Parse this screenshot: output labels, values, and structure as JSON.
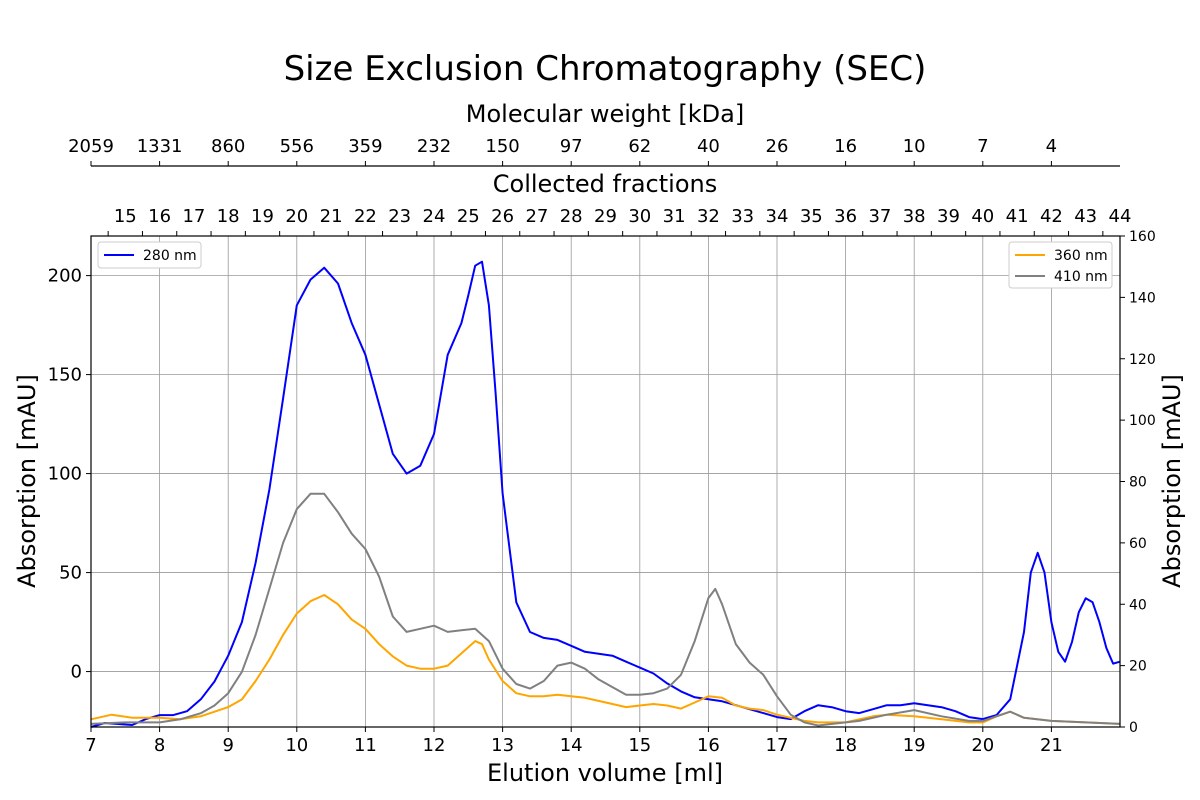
{
  "chart_data": {
    "type": "line",
    "title": "Size Exclusion Chromatography (SEC)",
    "xlabel": "Elution volume [ml]",
    "ylabel_left": "Absorption [mAU]",
    "ylabel_right": "Absorption [mAU]",
    "top_axis_1_label": "Molecular weight [kDa]",
    "top_axis_2_label": "Collected fractions",
    "xlim": [
      7,
      22
    ],
    "ylim_left": [
      -28,
      220
    ],
    "ylim_right": [
      0,
      160
    ],
    "x_ticks": [
      7,
      8,
      9,
      10,
      11,
      12,
      13,
      14,
      15,
      16,
      17,
      18,
      19,
      20,
      21
    ],
    "y_ticks_left": [
      0,
      50,
      100,
      150,
      200
    ],
    "y_ticks_right": [
      0,
      20,
      40,
      60,
      80,
      100,
      120,
      140,
      160
    ],
    "mw_ticks": [
      {
        "x": 7,
        "label": "2059"
      },
      {
        "x": 8,
        "label": "1331"
      },
      {
        "x": 9,
        "label": "860"
      },
      {
        "x": 10,
        "label": "556"
      },
      {
        "x": 11,
        "label": "359"
      },
      {
        "x": 12,
        "label": "232"
      },
      {
        "x": 13,
        "label": "150"
      },
      {
        "x": 14,
        "label": "97"
      },
      {
        "x": 15,
        "label": "62"
      },
      {
        "x": 16,
        "label": "40"
      },
      {
        "x": 17,
        "label": "26"
      },
      {
        "x": 18,
        "label": "16"
      },
      {
        "x": 19,
        "label": "10"
      },
      {
        "x": 20,
        "label": "7"
      },
      {
        "x": 21,
        "label": "4"
      }
    ],
    "fractions": {
      "start_boundary": 7.25,
      "width": 0.5,
      "labels": [
        "15",
        "16",
        "17",
        "18",
        "19",
        "20",
        "21",
        "22",
        "23",
        "24",
        "25",
        "26",
        "27",
        "28",
        "29",
        "30",
        "31",
        "32",
        "33",
        "34",
        "35",
        "36",
        "37",
        "38",
        "39",
        "40",
        "41",
        "42",
        "43",
        "44"
      ]
    },
    "grid": true,
    "legend_left": {
      "position": "top-left",
      "entries": [
        "280 nm"
      ]
    },
    "legend_right": {
      "position": "top-right",
      "entries": [
        "360 nm",
        "410 nm"
      ]
    },
    "series": [
      {
        "name": "280 nm",
        "axis": "left",
        "color": "#0000ff",
        "points": [
          [
            7,
            -28
          ],
          [
            7.2,
            -26
          ],
          [
            7.4,
            -26.5
          ],
          [
            7.6,
            -27
          ],
          [
            7.8,
            -24
          ],
          [
            8,
            -22
          ],
          [
            8.2,
            -22
          ],
          [
            8.4,
            -20
          ],
          [
            8.6,
            -14
          ],
          [
            8.8,
            -5
          ],
          [
            9,
            8
          ],
          [
            9.2,
            25
          ],
          [
            9.4,
            55
          ],
          [
            9.6,
            92
          ],
          [
            9.8,
            138
          ],
          [
            10,
            185
          ],
          [
            10.2,
            198
          ],
          [
            10.4,
            204
          ],
          [
            10.6,
            196
          ],
          [
            10.8,
            176
          ],
          [
            11,
            160
          ],
          [
            11.2,
            135
          ],
          [
            11.4,
            110
          ],
          [
            11.6,
            100
          ],
          [
            11.8,
            104
          ],
          [
            12,
            120
          ],
          [
            12.2,
            160
          ],
          [
            12.4,
            176
          ],
          [
            12.5,
            190
          ],
          [
            12.6,
            205
          ],
          [
            12.7,
            207
          ],
          [
            12.8,
            185
          ],
          [
            12.9,
            140
          ],
          [
            13,
            90
          ],
          [
            13.2,
            35
          ],
          [
            13.4,
            20
          ],
          [
            13.6,
            17
          ],
          [
            13.8,
            16
          ],
          [
            14,
            13
          ],
          [
            14.2,
            10
          ],
          [
            14.4,
            9
          ],
          [
            14.6,
            8
          ],
          [
            14.8,
            5
          ],
          [
            15,
            2
          ],
          [
            15.2,
            -1
          ],
          [
            15.4,
            -6
          ],
          [
            15.6,
            -10
          ],
          [
            15.8,
            -13
          ],
          [
            16,
            -14
          ],
          [
            16.2,
            -15
          ],
          [
            16.4,
            -17
          ],
          [
            16.6,
            -19
          ],
          [
            16.8,
            -21
          ],
          [
            17,
            -23
          ],
          [
            17.2,
            -24
          ],
          [
            17.4,
            -20
          ],
          [
            17.6,
            -17
          ],
          [
            17.8,
            -18
          ],
          [
            18,
            -20
          ],
          [
            18.2,
            -21
          ],
          [
            18.4,
            -19
          ],
          [
            18.6,
            -17
          ],
          [
            18.8,
            -17
          ],
          [
            19,
            -16
          ],
          [
            19.2,
            -17
          ],
          [
            19.4,
            -18
          ],
          [
            19.6,
            -20
          ],
          [
            19.8,
            -23
          ],
          [
            20,
            -24
          ],
          [
            20.2,
            -22
          ],
          [
            20.4,
            -14
          ],
          [
            20.6,
            20
          ],
          [
            20.7,
            50
          ],
          [
            20.8,
            60
          ],
          [
            20.9,
            50
          ],
          [
            21,
            25
          ],
          [
            21.1,
            10
          ],
          [
            21.2,
            5
          ],
          [
            21.3,
            15
          ],
          [
            21.4,
            30
          ],
          [
            21.5,
            37
          ],
          [
            21.6,
            35
          ],
          [
            21.7,
            25
          ],
          [
            21.8,
            12
          ],
          [
            21.9,
            4
          ],
          [
            22,
            5
          ]
        ]
      },
      {
        "name": "360 nm",
        "axis": "right",
        "color": "#ffa500",
        "points": [
          [
            7,
            2.5
          ],
          [
            7.3,
            4
          ],
          [
            7.6,
            3
          ],
          [
            8,
            3
          ],
          [
            8.3,
            2.5
          ],
          [
            8.6,
            3.5
          ],
          [
            9,
            6.5
          ],
          [
            9.2,
            9
          ],
          [
            9.4,
            15
          ],
          [
            9.6,
            22
          ],
          [
            9.8,
            30
          ],
          [
            10,
            37
          ],
          [
            10.2,
            41
          ],
          [
            10.4,
            43
          ],
          [
            10.6,
            40
          ],
          [
            10.8,
            35
          ],
          [
            11,
            32
          ],
          [
            11.2,
            27
          ],
          [
            11.4,
            23
          ],
          [
            11.6,
            20
          ],
          [
            11.8,
            19
          ],
          [
            12,
            19
          ],
          [
            12.2,
            20
          ],
          [
            12.4,
            24
          ],
          [
            12.6,
            28
          ],
          [
            12.7,
            27
          ],
          [
            12.8,
            22
          ],
          [
            13,
            15
          ],
          [
            13.2,
            11
          ],
          [
            13.4,
            10
          ],
          [
            13.6,
            10
          ],
          [
            13.8,
            10.5
          ],
          [
            14,
            10
          ],
          [
            14.2,
            9.5
          ],
          [
            14.4,
            8.5
          ],
          [
            14.6,
            7.5
          ],
          [
            14.8,
            6.5
          ],
          [
            15,
            7
          ],
          [
            15.2,
            7.5
          ],
          [
            15.4,
            7
          ],
          [
            15.6,
            6
          ],
          [
            15.8,
            8
          ],
          [
            16,
            10
          ],
          [
            16.2,
            9.5
          ],
          [
            16.4,
            7
          ],
          [
            16.6,
            6
          ],
          [
            16.8,
            5.5
          ],
          [
            17,
            4
          ],
          [
            17.2,
            3
          ],
          [
            17.4,
            2
          ],
          [
            17.6,
            1.5
          ],
          [
            18,
            1.5
          ],
          [
            18.4,
            3.5
          ],
          [
            18.6,
            4
          ],
          [
            19,
            3.5
          ],
          [
            19.4,
            2.5
          ],
          [
            19.8,
            1.5
          ],
          [
            20,
            1.5
          ],
          [
            20.2,
            3.5
          ],
          [
            20.4,
            5
          ],
          [
            20.6,
            3
          ],
          [
            21,
            2
          ],
          [
            21.5,
            1.5
          ],
          [
            22,
            1
          ]
        ]
      },
      {
        "name": "410 nm",
        "axis": "right",
        "color": "#808080",
        "points": [
          [
            7,
            1
          ],
          [
            7.5,
            1.5
          ],
          [
            8,
            1.5
          ],
          [
            8.3,
            2.5
          ],
          [
            8.6,
            4.5
          ],
          [
            8.8,
            7
          ],
          [
            9,
            11
          ],
          [
            9.2,
            18
          ],
          [
            9.4,
            30
          ],
          [
            9.6,
            45
          ],
          [
            9.8,
            60
          ],
          [
            10,
            71
          ],
          [
            10.2,
            76
          ],
          [
            10.4,
            76
          ],
          [
            10.6,
            70
          ],
          [
            10.8,
            63
          ],
          [
            11,
            58
          ],
          [
            11.2,
            49
          ],
          [
            11.4,
            36
          ],
          [
            11.6,
            31
          ],
          [
            11.8,
            32
          ],
          [
            12,
            33
          ],
          [
            12.2,
            31
          ],
          [
            12.4,
            31.5
          ],
          [
            12.6,
            32
          ],
          [
            12.8,
            28
          ],
          [
            13,
            19
          ],
          [
            13.2,
            14
          ],
          [
            13.4,
            12.5
          ],
          [
            13.6,
            15
          ],
          [
            13.8,
            20
          ],
          [
            14,
            21
          ],
          [
            14.2,
            19
          ],
          [
            14.4,
            15.5
          ],
          [
            14.6,
            13
          ],
          [
            14.8,
            10.5
          ],
          [
            15,
            10.5
          ],
          [
            15.2,
            11
          ],
          [
            15.4,
            12.5
          ],
          [
            15.6,
            17
          ],
          [
            15.8,
            28
          ],
          [
            16,
            42
          ],
          [
            16.1,
            45
          ],
          [
            16.2,
            40
          ],
          [
            16.4,
            27
          ],
          [
            16.6,
            21
          ],
          [
            16.8,
            17
          ],
          [
            17,
            10
          ],
          [
            17.2,
            4
          ],
          [
            17.4,
            1.5
          ],
          [
            17.6,
            0.5
          ],
          [
            18,
            1.5
          ],
          [
            18.2,
            2
          ],
          [
            18.4,
            3
          ],
          [
            18.6,
            4
          ],
          [
            19,
            5.5
          ],
          [
            19.4,
            3.5
          ],
          [
            19.8,
            2
          ],
          [
            20,
            2
          ],
          [
            20.2,
            3.5
          ],
          [
            20.4,
            5
          ],
          [
            20.6,
            3
          ],
          [
            21,
            2
          ],
          [
            21.5,
            1.5
          ],
          [
            22,
            1
          ]
        ]
      }
    ]
  }
}
